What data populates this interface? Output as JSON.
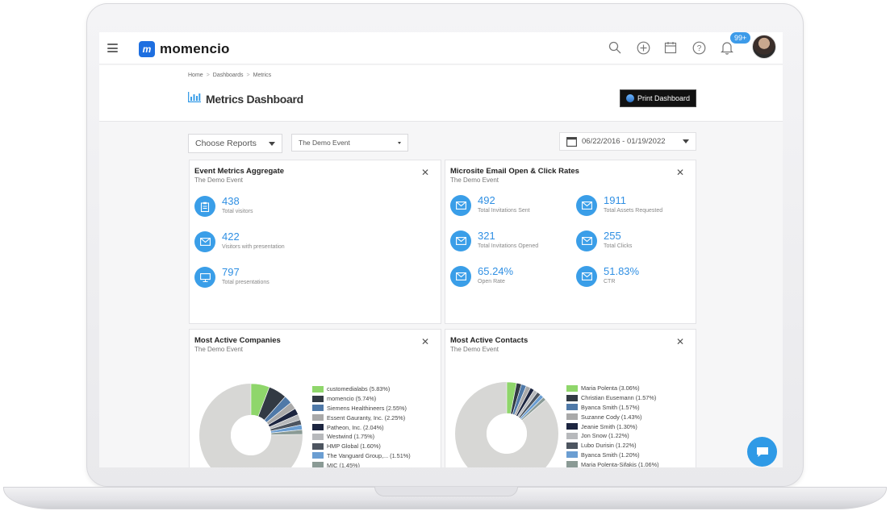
{
  "app": {
    "brand": "momencio",
    "notification_count": "99+"
  },
  "breadcrumb": {
    "home": "Home",
    "dashboards": "Dashboards",
    "current": "Metrics"
  },
  "page": {
    "title": "Metrics Dashboard",
    "print_label": "Print Dashboard"
  },
  "filters": {
    "reports_label": "Choose Reports",
    "event_selected": "The Demo Event",
    "date_range": "06/22/2016 - 01/19/2022"
  },
  "cards": {
    "aggregate": {
      "title": "Event Metrics Aggregate",
      "subtitle": "The Demo Event",
      "metrics": [
        {
          "value": "438",
          "label": "Total visitors",
          "icon": "clipboard-icon"
        },
        {
          "value": "422",
          "label": "Visitors with presentation",
          "icon": "envelope-icon"
        },
        {
          "value": "797",
          "label": "Total presentations",
          "icon": "presentation-icon"
        }
      ]
    },
    "email": {
      "title": "Microsite Email Open & Click Rates",
      "subtitle": "The Demo Event",
      "metrics": [
        {
          "value": "492",
          "label": "Total Invitations Sent"
        },
        {
          "value": "1911",
          "label": "Total Assets Requested"
        },
        {
          "value": "321",
          "label": "Total Invitations Opened"
        },
        {
          "value": "255",
          "label": "Total Clicks"
        },
        {
          "value": "65.24%",
          "label": "Open Rate"
        },
        {
          "value": "51.83%",
          "label": "CTR"
        }
      ]
    },
    "companies": {
      "title": "Most Active Companies",
      "subtitle": "The Demo Event",
      "legend": [
        {
          "label": "customedialabs (5.83%)",
          "color": "#8fd66b",
          "pct": 5.83
        },
        {
          "label": "momencio (5.74%)",
          "color": "#323a44",
          "pct": 5.74
        },
        {
          "label": "Siemens Healthineers (2.55%)",
          "color": "#4f79a8",
          "pct": 2.55
        },
        {
          "label": "Essent Gauranty, Inc. (2.25%)",
          "color": "#a9a9a9",
          "pct": 2.25
        },
        {
          "label": "Patheon, Inc. (2.04%)",
          "color": "#1c2540",
          "pct": 2.04
        },
        {
          "label": "Westwind (1.75%)",
          "color": "#b7b9bc",
          "pct": 1.75
        },
        {
          "label": "HMP Global (1.60%)",
          "color": "#4d5560",
          "pct": 1.6
        },
        {
          "label": "The Vanguard Group,... (1.51%)",
          "color": "#6b9ed2",
          "pct": 1.51
        },
        {
          "label": "MIC (1.45%)",
          "color": "#8a9a95",
          "pct": 1.45
        }
      ]
    },
    "contacts": {
      "title": "Most Active Contacts",
      "subtitle": "The Demo Event",
      "legend": [
        {
          "label": "Maria Polenta (3.06%)",
          "color": "#8fd66b",
          "pct": 3.06
        },
        {
          "label": "Christian Eusemann (1.57%)",
          "color": "#323a44",
          "pct": 1.57
        },
        {
          "label": "Byanca Smith (1.57%)",
          "color": "#4f79a8",
          "pct": 1.57
        },
        {
          "label": "Suzanne Cody (1.43%)",
          "color": "#a9a9a9",
          "pct": 1.43
        },
        {
          "label": "Jeanie Smith (1.30%)",
          "color": "#1c2540",
          "pct": 1.3
        },
        {
          "label": "Jon Snow (1.22%)",
          "color": "#b7b9bc",
          "pct": 1.22
        },
        {
          "label": "Lubo Durisin (1.22%)",
          "color": "#4d5560",
          "pct": 1.22
        },
        {
          "label": "Byanca Smith (1.20%)",
          "color": "#6b9ed2",
          "pct": 1.2
        },
        {
          "label": "Maria Polenta-Sifakis (1.06%)",
          "color": "#8a9a95",
          "pct": 1.06
        }
      ]
    }
  },
  "colors": {
    "accent": "#3a9ee8",
    "donut_rest": "#d7d7d5"
  }
}
